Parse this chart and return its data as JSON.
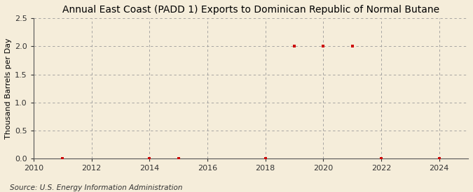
{
  "title": "Annual East Coast (PADD 1) Exports to Dominican Republic of Normal Butane",
  "ylabel": "Thousand Barrels per Day",
  "source": "Source: U.S. Energy Information Administration",
  "background_color": "#f5edda",
  "plot_background_color": "#f5edda",
  "x_data": [
    2011,
    2014,
    2015,
    2018,
    2019,
    2020,
    2021,
    2022,
    2024
  ],
  "y_data": [
    0.0,
    0.0,
    0.0,
    0.0,
    2.0,
    2.0,
    2.0,
    0.0,
    0.0
  ],
  "marker_color": "#cc0000",
  "marker_style": "s",
  "marker_size": 3.5,
  "xlim": [
    2010,
    2025
  ],
  "ylim": [
    0,
    2.5
  ],
  "yticks": [
    0.0,
    0.5,
    1.0,
    1.5,
    2.0,
    2.5
  ],
  "xticks": [
    2010,
    2012,
    2014,
    2016,
    2018,
    2020,
    2022,
    2024
  ],
  "grid_color": "#999999",
  "grid_style": "--",
  "title_fontsize": 10,
  "ylabel_fontsize": 8,
  "tick_fontsize": 8,
  "source_fontsize": 7.5
}
